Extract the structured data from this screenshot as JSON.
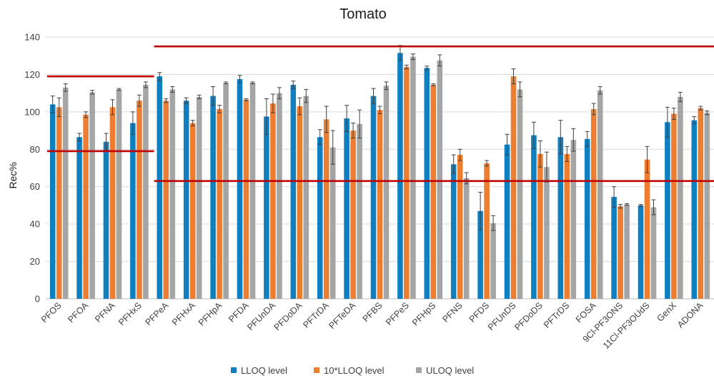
{
  "chart_data": {
    "type": "bar",
    "title": "Tomato",
    "xlabel": "",
    "ylabel": "Rec%",
    "ylim": [
      0,
      140
    ],
    "yticks": [
      0,
      20,
      40,
      60,
      80,
      100,
      120,
      140
    ],
    "grid": true,
    "legend_position": "bottom",
    "categories": [
      "PFOS",
      "PFOA",
      "PFNA",
      "PFHxS",
      "PFPeA",
      "PFHxA",
      "PFHpA",
      "PFDA",
      "PFUnDA",
      "PFDoDA",
      "PFTrDA",
      "PFTeDA",
      "PFBS",
      "PFPeS",
      "PFHpS",
      "PFNS",
      "PFDS",
      "PFUnDS",
      "PFDoDS",
      "PFTrDS",
      "FOSA",
      "9Cl-PF3ONS",
      "11Cl-PF3OUdS",
      "GenX",
      "ADONA"
    ],
    "series": [
      {
        "name": "LLOQ level",
        "color": "#0f7fc0",
        "values": [
          104,
          86.5,
          84,
          94,
          119,
          106,
          108.5,
          117.5,
          97.5,
          114.5,
          86.5,
          96.5,
          108.5,
          131.5,
          123.5,
          72,
          47,
          82.5,
          87.5,
          86.5,
          85.5,
          54.5,
          50,
          94.5,
          95.5
        ],
        "errors": [
          4.5,
          2,
          4.5,
          6,
          2,
          1.5,
          5,
          2,
          9.5,
          2,
          4,
          7,
          4,
          4,
          1,
          5,
          10,
          5.5,
          7,
          9,
          4,
          5.5,
          0.5,
          8,
          2
        ]
      },
      {
        "name": "10*LLOQ level",
        "color": "#ed7d31",
        "values": [
          102.5,
          98.5,
          102.5,
          106,
          106,
          94,
          101.5,
          106.5,
          104.5,
          103,
          96,
          90,
          101,
          124,
          114.5,
          77,
          72.5,
          119,
          77.5,
          77.5,
          101.5,
          49.5,
          74.5,
          99,
          102
        ],
        "errors": [
          5,
          1.5,
          4,
          3,
          1,
          1.5,
          2,
          0.5,
          5,
          4.5,
          7,
          4,
          2,
          1,
          0.5,
          3,
          1.5,
          4,
          7,
          4,
          3,
          1,
          7,
          3,
          1
        ]
      },
      {
        "name": "ULOQ level",
        "color": "#a5a5a5",
        "values": [
          113,
          110.5,
          112,
          114.5,
          112,
          108,
          115.5,
          115.5,
          110,
          108.5,
          81,
          93.5,
          114,
          129.5,
          127.5,
          64.5,
          40.5,
          112,
          70.5,
          85,
          111.5,
          50.5,
          49,
          108,
          99.5
        ],
        "errors": [
          2,
          1,
          0.5,
          1.5,
          1.5,
          1,
          0.5,
          0.5,
          3,
          3.5,
          9,
          7.5,
          2,
          1.5,
          3,
          3,
          4,
          4,
          8,
          6,
          2,
          0.5,
          4,
          2.5,
          1
        ]
      }
    ],
    "reference_lines": [
      {
        "color": "#c00000",
        "y": 119,
        "x_start_category": "PFOS",
        "x_end_category": "PFHxS"
      },
      {
        "color": "#c00000",
        "y": 79,
        "x_start_category": "PFOS",
        "x_end_category": "PFHxS"
      },
      {
        "color": "#c00000",
        "y": 135,
        "x_start_category": "PFPeA",
        "x_end_category": "ADONA"
      },
      {
        "color": "#c00000",
        "y": 63,
        "x_start_category": "PFPeA",
        "x_end_category": "ADONA"
      }
    ]
  }
}
